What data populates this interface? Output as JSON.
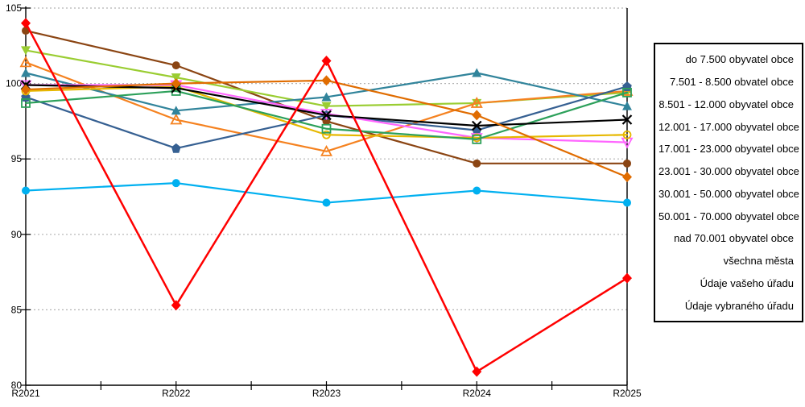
{
  "chart_data": {
    "type": "line",
    "title": "",
    "xlabel": "",
    "ylabel": "",
    "categories": [
      "R2021",
      "R2022",
      "R2023",
      "R2024",
      "R2025"
    ],
    "ylim": [
      80,
      105
    ],
    "yticks": [
      80,
      85,
      90,
      95,
      100,
      105
    ],
    "grid": "dotted-horizontal",
    "legend_position": "right",
    "series": [
      {
        "name": "do 7.500 obyvatel obce",
        "color": "#8B4513",
        "marker": "circle-filled",
        "values": [
          103.5,
          101.2,
          97.5,
          94.7,
          94.7
        ]
      },
      {
        "name": "7.501 - 8.500 obvatel obce",
        "color": "#9ACD32",
        "marker": "triangle-down-filled",
        "values": [
          102.2,
          100.4,
          98.5,
          98.7,
          99.4
        ]
      },
      {
        "name": "8.501 - 12.000 obyvatel obce",
        "color": "#F58220",
        "marker": "triangle-up-open",
        "values": [
          101.4,
          97.6,
          95.5,
          98.7,
          99.5
        ]
      },
      {
        "name": "12.001 - 17.000 obyvatel obce",
        "color": "#31849B",
        "marker": "triangle-up-filled",
        "values": [
          100.7,
          98.2,
          99.1,
          100.7,
          98.5
        ]
      },
      {
        "name": "17.001 - 23.000 obyvatel obce",
        "color": "#366092",
        "marker": "pentagon-filled",
        "values": [
          99.1,
          95.7,
          97.9,
          96.9,
          99.8
        ]
      },
      {
        "name": "23.001 - 30.000 obyvatel obce",
        "color": "#FF66FF",
        "marker": "triangle-down-open",
        "values": [
          99.9,
          99.9,
          98.0,
          96.4,
          96.1
        ]
      },
      {
        "name": "30.001 - 50.000 obyvatel obce",
        "color": "#E6B800",
        "marker": "circle-open",
        "values": [
          99.5,
          99.8,
          96.6,
          96.4,
          96.6
        ]
      },
      {
        "name": "50.001 - 70.000 obyvatel obce",
        "color": "#2CA05A",
        "marker": "square-open",
        "values": [
          98.7,
          99.5,
          97.0,
          96.3,
          99.4
        ]
      },
      {
        "name": "nad 70.001 obyvatel obce",
        "color": "#00B0F0",
        "marker": "circle-filled",
        "values": [
          92.9,
          93.4,
          92.1,
          92.9,
          92.1
        ]
      },
      {
        "name": "všechna města",
        "color": "#000000",
        "marker": "x-cross",
        "values": [
          99.9,
          99.7,
          97.9,
          97.2,
          97.6
        ]
      },
      {
        "name": "Údaje vašeho úřadu",
        "color": "#E06C00",
        "marker": "diamond-filled",
        "values": [
          99.6,
          100.0,
          100.2,
          97.9,
          93.8
        ]
      },
      {
        "name": "Údaje vybraného úřadu",
        "color": "#FF0000",
        "marker": "diamond-filled",
        "values": [
          104.0,
          85.3,
          101.5,
          80.9,
          87.1
        ]
      }
    ]
  },
  "colors": {
    "background": "#ffffff",
    "gridline": "#b3b3b3",
    "axis": "#000000",
    "legend_border": "#000000"
  }
}
